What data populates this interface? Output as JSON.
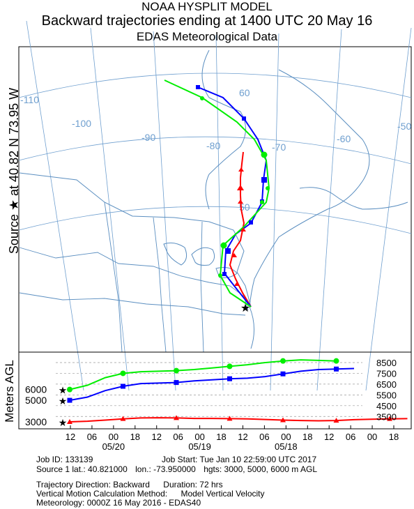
{
  "header": {
    "title": "NOAA HYSPLIT MODEL",
    "subtitle": "Backward trajectories ending at 1400 UTC 20 May 16",
    "data_source": "EDAS Meteorological Data"
  },
  "source_label": "Source ★ at   40.82 N   73.95 W",
  "vertical_label": "Meters AGL",
  "map": {
    "longitude_labels": [
      "-110",
      "-100",
      "-90",
      "-80",
      "-70",
      "-60",
      "-50"
    ],
    "latitude_labels": [
      "60",
      "50"
    ]
  },
  "colors": {
    "t3000": "#ff0000",
    "t5000": "#0000ff",
    "t6000": "#00ee00",
    "grid": "#6f9fcf",
    "coast": "#5a8ec0"
  },
  "chart_data": {
    "type": "line",
    "x_tick_labels": [
      "12",
      "06",
      "00",
      "18",
      "12",
      "06",
      "00",
      "18",
      "12",
      "06",
      "00",
      "18",
      "12",
      "06",
      "00",
      "18"
    ],
    "date_labels": [
      "05/20",
      "05/19",
      "05/18"
    ],
    "y_tick_labels": [
      "8500",
      "7500",
      "6500",
      "5500",
      "4500",
      "3500"
    ],
    "start_heights": [
      "6000",
      "5000",
      "3000"
    ],
    "series": [
      {
        "start_height": 3000,
        "values": [
          3000,
          3060,
          3160,
          3280,
          3360,
          3380,
          3360,
          3320,
          3320,
          3300,
          3280,
          3220,
          3160,
          3120,
          3100,
          3120,
          3200,
          3240,
          3280,
          3300
        ]
      },
      {
        "start_height": 5000,
        "values": [
          5000,
          5300,
          5900,
          6300,
          6550,
          6600,
          6650,
          6800,
          6900,
          7000,
          7050,
          7200,
          7450,
          7700,
          7850,
          7900,
          7950
        ]
      },
      {
        "start_height": 6000,
        "values": [
          6000,
          6400,
          7100,
          7500,
          7650,
          7700,
          7750,
          7850,
          8000,
          8150,
          8300,
          8500,
          8650,
          8750,
          8700,
          8650
        ]
      }
    ]
  },
  "info": {
    "line1_left": "Job ID: 133139",
    "line1_right": "Job Start: Tue Jan 10 22:59:00 UTC 2017",
    "line2_a": "Source 1 lat.: 40.821000",
    "line2_b": "lon.: -73.950000",
    "line2_c": "hgts: 3000, 5000, 6000 m AGL",
    "line3_a": "Trajectory Direction: Backward",
    "line3_b": "Duration: 72 hrs",
    "line4_a": "Vertical Motion Calculation Method:",
    "line4_b": "Model Vertical Velocity",
    "line5": "Meteorology: 0000Z 16 May 2016 - EDAS40"
  }
}
